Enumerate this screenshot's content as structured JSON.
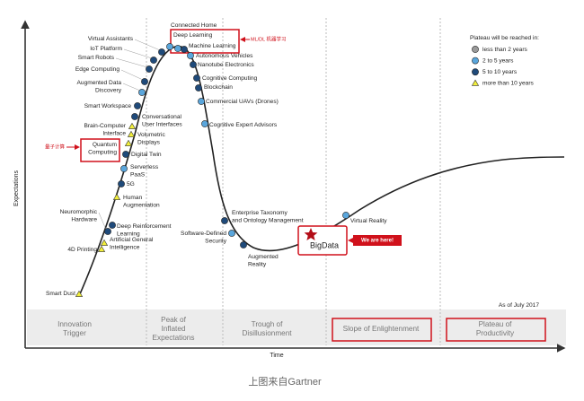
{
  "axis": {
    "y_label": "Expectations",
    "x_label": "Time"
  },
  "legend": {
    "title": "Plateau will be reached in:",
    "items": [
      "less than 2 years",
      "2 to 5 years",
      "5 to 10 years",
      "more than 10 years"
    ]
  },
  "nodes": [
    {
      "lines": [
        "Smart Dust"
      ]
    },
    {
      "lines": [
        "4D Printing"
      ]
    },
    {
      "lines": [
        "Artificial General",
        "Intelligence"
      ]
    },
    {
      "lines": [
        "Neuromorphic",
        "Hardware"
      ]
    },
    {
      "lines": [
        "Deep Reinforcement",
        "Learning"
      ]
    },
    {
      "lines": [
        "Human",
        "Augmentation"
      ]
    },
    {
      "lines": [
        "5G"
      ]
    },
    {
      "lines": [
        "Serverless",
        "PaaS"
      ]
    },
    {
      "lines": [
        "Digital Twin"
      ]
    },
    {
      "lines": [
        "Quantum",
        "Computing"
      ]
    },
    {
      "lines": [
        "Volumetric",
        "Displays"
      ]
    },
    {
      "lines": [
        "Brain-Computer",
        "Interface"
      ]
    },
    {
      "lines": [
        "Conversational",
        "User Interfaces"
      ]
    },
    {
      "lines": [
        "Smart Workspace"
      ]
    },
    {
      "lines": [
        "Augmented Data",
        "Discovery"
      ]
    },
    {
      "lines": [
        "Edge Computing"
      ]
    },
    {
      "lines": [
        "Smart Robots"
      ]
    },
    {
      "lines": [
        "IoT Platform"
      ]
    },
    {
      "lines": [
        "Virtual Assistants"
      ]
    },
    {
      "lines": [
        "Connected Home"
      ]
    },
    {
      "lines": [
        "Deep Learning"
      ]
    },
    {
      "lines": [
        "Machine Learning"
      ]
    },
    {
      "lines": [
        "Autonomous Vehicles"
      ]
    },
    {
      "lines": [
        "Nanotube Electronics"
      ]
    },
    {
      "lines": [
        "Cognitive Computing"
      ]
    },
    {
      "lines": [
        "Blockchain"
      ]
    },
    {
      "lines": [
        "Commercial UAVs (Drones)"
      ]
    },
    {
      "lines": [
        "Cognitive Expert Advisors"
      ]
    },
    {
      "lines": [
        "Enterprise Taxonomy",
        "and Ontology Management"
      ]
    },
    {
      "lines": [
        "Software-Defined",
        "Security"
      ]
    },
    {
      "lines": [
        "Augmented",
        "Reality"
      ]
    },
    {
      "lines": [
        "Virtual Reality"
      ]
    }
  ],
  "phases": [
    {
      "lines": [
        "Innovation",
        "Trigger"
      ]
    },
    {
      "lines": [
        "Peak of",
        "Inflated",
        "Expectations"
      ]
    },
    {
      "lines": [
        "Trough of",
        "Disillusionment"
      ]
    },
    {
      "lines": [
        "Slope of Enlightenment"
      ]
    },
    {
      "lines": [
        "Plateau of",
        "Productivity"
      ]
    }
  ],
  "as_of": "As of July 2017",
  "annotations": {
    "ml_dl": "ML/DL 机器学习",
    "quantum": "量子计算",
    "marker": "BigData",
    "here": "We are here!"
  },
  "caption": "上图来自Gartner"
}
